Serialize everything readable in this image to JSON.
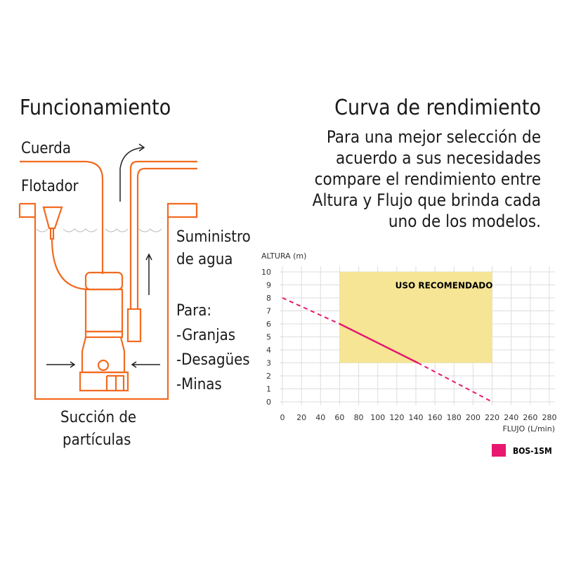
{
  "left": {
    "title": "Funcionamiento",
    "labels": {
      "rope": "Cuerda",
      "float": "Flotador",
      "supply_1": "Suministro",
      "supply_2": "de agua",
      "for": "Para:",
      "uses": [
        "-Granjas",
        "-Desagües",
        "-Minas"
      ],
      "suction_1": "Succión de",
      "suction_2": "partículas"
    },
    "line_color": "#f26b21"
  },
  "right": {
    "title": "Curva de rendimiento",
    "description": [
      "Para una mejor selección de",
      "acuerdo a sus necesidades",
      "compare el rendimiento entre",
      "Altura y Flujo que brinda cada",
      "uno de los modelos."
    ]
  },
  "chart_data": {
    "type": "line",
    "ylabel": "ALTURA (m)",
    "xlabel": "FLUJO (L/min)",
    "xlim": [
      0,
      280
    ],
    "ylim": [
      0,
      10
    ],
    "xticks": [
      0,
      20,
      40,
      60,
      80,
      100,
      120,
      140,
      160,
      180,
      200,
      220,
      240,
      260,
      280
    ],
    "yticks": [
      0,
      1,
      2,
      3,
      4,
      5,
      6,
      7,
      8,
      9,
      10
    ],
    "grid": true,
    "legend_position": "bottom-right",
    "recommended_zone": {
      "label": "USO RECOMENDADO",
      "x": [
        60,
        220
      ],
      "y": [
        3,
        10
      ],
      "color": "#f5e595"
    },
    "series": [
      {
        "name": "BOS-1SM",
        "color": "#e8176f",
        "points": [
          [
            0,
            8
          ],
          [
            60,
            6
          ],
          [
            142,
            3
          ],
          [
            220,
            0
          ]
        ],
        "solid_range": [
          60,
          142
        ]
      }
    ]
  }
}
